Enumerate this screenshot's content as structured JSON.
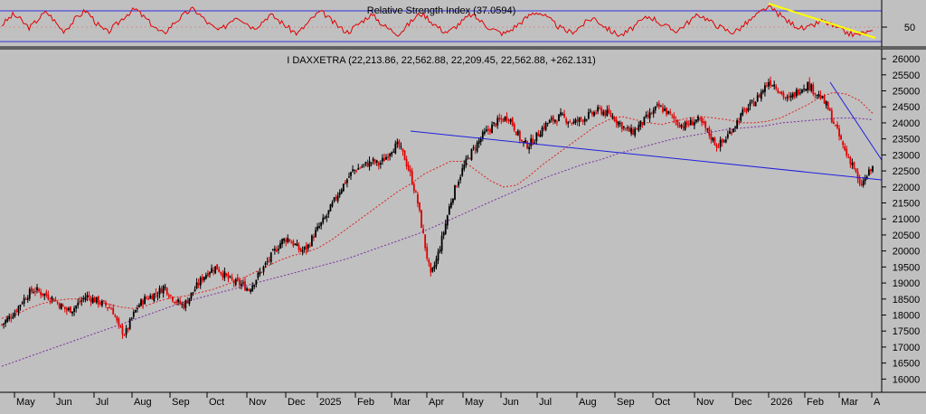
{
  "colors": {
    "background": "#c0c0c0",
    "up_candle": "#000000",
    "down_candle": "#e00000",
    "ma_short": "#e02020",
    "ma_long": "#7a2fa0",
    "trendline": "#2020e0",
    "rsi_line": "#e00000",
    "rsi_bounds": "#3030e0",
    "rsi_trendline": "#ffff00"
  },
  "rsi_panel": {
    "title": "Relative Strength Index (37.0594)",
    "tick_label": "50",
    "chart_data": {
      "type": "line",
      "title": "Relative Strength Index (37.0594)",
      "last_value": 37.0594,
      "ylim": [
        20,
        80
      ],
      "reference_lines": [
        70,
        50,
        30
      ],
      "ticks": [
        50
      ],
      "approx_trace": [
        48,
        55,
        62,
        58,
        50,
        44,
        52,
        60,
        66,
        58,
        48,
        40,
        46,
        55,
        62,
        68,
        60,
        50,
        42,
        38,
        45,
        52,
        60,
        66,
        70,
        62,
        55,
        48,
        40,
        36,
        44,
        52,
        58,
        64,
        70,
        66,
        58,
        50,
        44,
        40,
        46,
        54,
        60,
        56,
        50,
        44,
        48,
        55,
        62,
        58,
        52,
        46,
        40,
        36,
        44,
        52,
        60,
        66,
        62,
        54,
        48,
        42,
        38,
        44,
        50,
        56,
        62,
        58,
        50,
        44,
        40,
        36,
        42,
        50,
        58,
        64,
        60,
        52,
        46,
        40,
        38,
        44,
        50,
        56,
        62,
        58,
        52,
        46,
        42,
        38,
        36,
        40,
        46,
        52,
        58,
        64,
        66,
        62,
        56,
        50,
        44,
        40,
        38,
        42,
        48,
        54,
        58,
        52,
        46,
        40,
        36,
        34,
        38,
        44,
        50,
        56,
        60,
        56,
        50,
        46,
        42,
        40,
        46,
        52,
        58,
        62,
        58,
        52,
        48,
        44,
        40,
        38,
        42,
        48,
        54,
        60,
        66,
        72,
        70,
        64,
        58,
        52,
        48,
        44,
        42,
        46,
        50,
        54,
        50,
        46,
        42,
        38,
        36,
        34,
        36,
        38,
        37
      ]
    }
  },
  "price_panel": {
    "title": "I DAXXETRA (22,213.86, 22,562.88, 22,209.45, 22,562.88, +262.131)",
    "chart_data": {
      "type": "candlestick",
      "title": "I DAXXETRA (22,213.86, 22,562.88, 22,209.45, 22,562.88, +262.131)",
      "last": {
        "open": 22213.86,
        "high": 22562.88,
        "low": 22209.45,
        "close": 22562.88,
        "change": 262.131
      },
      "ylim": [
        15700,
        26200
      ],
      "y_ticks": [
        16000,
        16500,
        17000,
        17500,
        18000,
        18500,
        19000,
        19500,
        20000,
        20500,
        21000,
        21500,
        22000,
        22500,
        23000,
        23500,
        24000,
        24500,
        25000,
        25500,
        26000
      ],
      "x_labels": [
        "May",
        "Jun",
        "Jul",
        "Aug",
        "Sep",
        "Oct",
        "Nov",
        "Dec",
        "2025",
        "Feb",
        "Mar",
        "Apr",
        "May",
        "Jun",
        "Jul",
        "Aug",
        "Sep",
        "Oct",
        "Nov",
        "Dec",
        "2026",
        "Feb",
        "Mar",
        "A"
      ],
      "closes": [
        17700,
        17900,
        18100,
        18400,
        18650,
        18800,
        18700,
        18600,
        18500,
        18300,
        18150,
        18200,
        18400,
        18600,
        18500,
        18400,
        18300,
        18200,
        17600,
        17400,
        17900,
        18300,
        18500,
        18600,
        18700,
        18900,
        18600,
        18400,
        18300,
        18600,
        18900,
        19200,
        19400,
        19500,
        19300,
        19100,
        19000,
        18950,
        18800,
        19100,
        19400,
        19700,
        20000,
        20300,
        20400,
        20200,
        20000,
        20100,
        20500,
        20800,
        21100,
        21500,
        21900,
        22200,
        22500,
        22600,
        22700,
        22800,
        22700,
        22900,
        23200,
        23300,
        22900,
        22300,
        21500,
        20300,
        19200,
        19800,
        20600,
        21500,
        22100,
        22600,
        23000,
        23300,
        23600,
        23800,
        24000,
        24100,
        24200,
        23800,
        23400,
        23300,
        23500,
        23800,
        24000,
        24100,
        24200,
        24100,
        24000,
        24100,
        24200,
        24300,
        24400,
        24300,
        24200,
        24000,
        23800,
        23700,
        23900,
        24100,
        24300,
        24500,
        24400,
        24200,
        24000,
        23900,
        24000,
        24100,
        23900,
        23600,
        23300,
        23400,
        23700,
        24000,
        24300,
        24500,
        24700,
        25000,
        25300,
        25200,
        24900,
        24700,
        24900,
        25100,
        25200,
        25000,
        24800,
        24500,
        24000,
        23500,
        23000,
        22700,
        22000,
        22300,
        22600
      ]
    },
    "ma_short_curve": [
      17900,
      18000,
      18200,
      18350,
      18450,
      18500,
      18500,
      18450,
      18350,
      18250,
      18200,
      18300,
      18450,
      18550,
      18600,
      18700,
      18800,
      18950,
      19100,
      19300,
      19500,
      19700,
      19850,
      19950,
      20100,
      20350,
      20650,
      20950,
      21250,
      21550,
      21850,
      22100,
      22400,
      22600,
      22800,
      22800,
      22500,
      22200,
      22000,
      22050,
      22350,
      22700,
      23000,
      23300,
      23600,
      23900,
      24100,
      24200,
      24100,
      24000,
      23950,
      24050,
      24150,
      24200,
      24150,
      24100,
      24000,
      24000,
      24050,
      24150,
      24350,
      24550,
      24800,
      24950,
      24900,
      24700,
      24300
    ],
    "ma_long_curve": [
      16400,
      16600,
      16800,
      17000,
      17200,
      17400,
      17600,
      17800,
      18000,
      18200,
      18400,
      18550,
      18700,
      18850,
      19000,
      19150,
      19300,
      19450,
      19600,
      19750,
      19950,
      20150,
      20350,
      20550,
      20800,
      21050,
      21300,
      21550,
      21800,
      22050,
      22300,
      22500,
      22700,
      22850,
      23050,
      23200,
      23350,
      23500,
      23600,
      23700,
      23800,
      23850,
      23900,
      24000,
      24050,
      24100,
      24150,
      24150,
      24100
    ]
  }
}
